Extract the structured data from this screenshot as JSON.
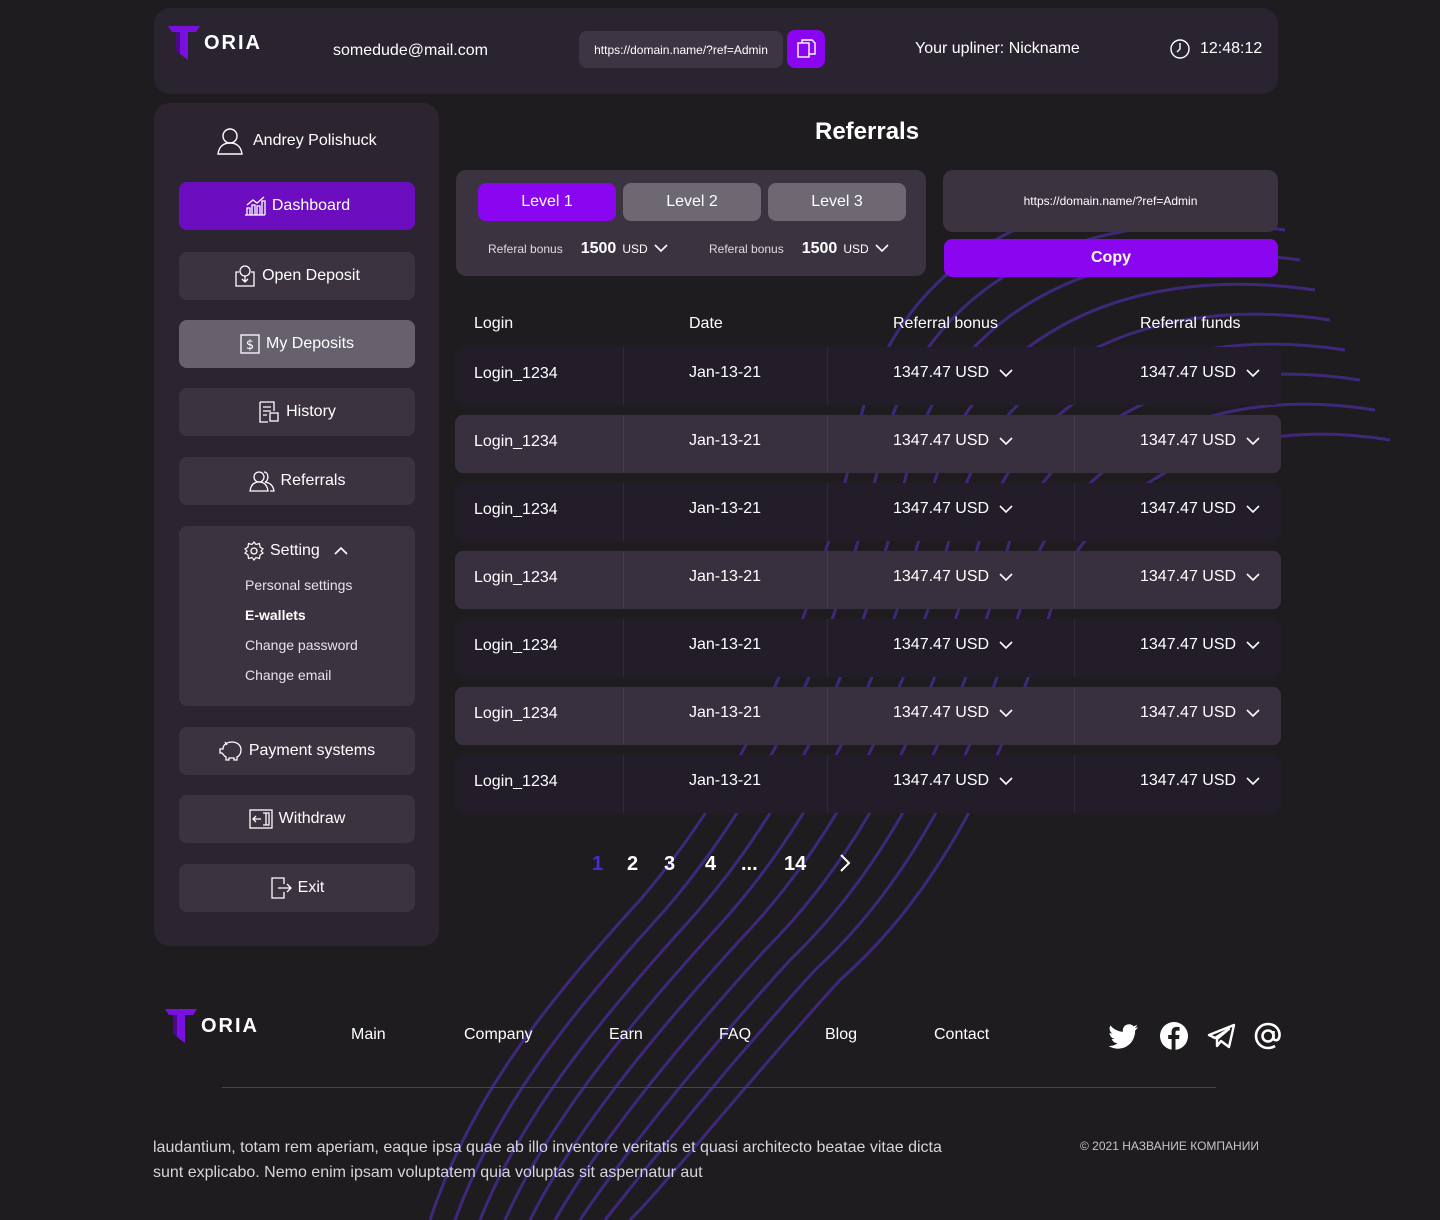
{
  "brand": {
    "logo_text": "ORIA",
    "accent": "#8a05f0"
  },
  "header": {
    "email": "somedude@mail.com",
    "ref_link": "https://domain.name/?ref=Admin",
    "upliner": "Your upliner: Nickname",
    "time": "12:48:12"
  },
  "sidebar": {
    "user_name": "Andrey Polishuck",
    "items": [
      {
        "label": "Dashboard",
        "icon": "chart-icon"
      },
      {
        "label": "Open Deposit",
        "icon": "deposit-icon"
      },
      {
        "label": "My Deposits",
        "icon": "dollar-icon"
      },
      {
        "label": "History",
        "icon": "history-icon"
      },
      {
        "label": "Referrals",
        "icon": "users-icon"
      }
    ],
    "settings": {
      "label": "Setting",
      "sub": [
        "Personal settings",
        "E-wallets",
        "Change password",
        "Change email"
      ]
    },
    "bottom_items": [
      {
        "label": "Payment systems",
        "icon": "piggy-icon"
      },
      {
        "label": "Withdraw",
        "icon": "wallet-icon"
      },
      {
        "label": "Exit",
        "icon": "exit-icon"
      }
    ]
  },
  "main": {
    "title": "Referrals",
    "levels": [
      "Level 1",
      "Level 2",
      "Level 3"
    ],
    "bonuses": [
      {
        "label": "Referal bonus",
        "value": "1500",
        "unit": "USD"
      },
      {
        "label": "Referal bonus",
        "value": "1500",
        "unit": "USD"
      }
    ],
    "ref_link": "https://domain.name/?ref=Admin",
    "copy_label": "Copy",
    "table": {
      "headers": [
        "Login",
        "Date",
        "Referral bonus",
        "Referral funds"
      ],
      "rows": [
        [
          "Login_1234",
          "Jan-13-21",
          "1347.47 USD",
          "1347.47 USD"
        ],
        [
          "Login_1234",
          "Jan-13-21",
          "1347.47 USD",
          "1347.47 USD"
        ],
        [
          "Login_1234",
          "Jan-13-21",
          "1347.47 USD",
          "1347.47 USD"
        ],
        [
          "Login_1234",
          "Jan-13-21",
          "1347.47 USD",
          "1347.47 USD"
        ],
        [
          "Login_1234",
          "Jan-13-21",
          "1347.47 USD",
          "1347.47 USD"
        ],
        [
          "Login_1234",
          "Jan-13-21",
          "1347.47 USD",
          "1347.47 USD"
        ],
        [
          "Login_1234",
          "Jan-13-21",
          "1347.47 USD",
          "1347.47 USD"
        ]
      ]
    },
    "pagination": [
      "1",
      "2",
      "3",
      "4",
      "...",
      "14"
    ]
  },
  "footer": {
    "links": [
      "Main",
      "Company",
      "Earn",
      "FAQ",
      "Blog",
      "Contact"
    ],
    "social": [
      "twitter-icon",
      "facebook-icon",
      "telegram-icon",
      "email-icon"
    ],
    "text": "laudantium, totam rem aperiam, eaque ipsa quae ab illo inventore veritatis et quasi architecto beatae vitae dicta sunt explicabo. Nemo enim ipsam voluptatem quia voluptas sit aspernatur aut",
    "copyright": "© 2021 НАЗВАНИЕ КОМПАНИИ"
  }
}
